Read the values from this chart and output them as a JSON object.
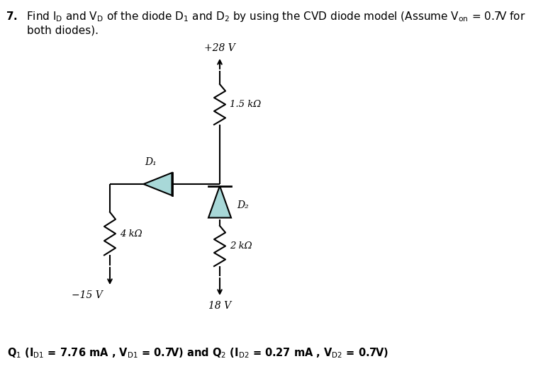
{
  "bg_color": "#ffffff",
  "wire_color": "#000000",
  "diode_fill": "#a8d8d8",
  "diode_stroke": "#000000",
  "text_color": "#000000",
  "voltage_top": "+28 V",
  "voltage_bottom": "18 V",
  "voltage_left": "−15 V",
  "r1_label": "1.5 kΩ",
  "r2_label": "4 kΩ",
  "r3_label": "2 kΩ",
  "d1_label": "D₁",
  "d2_label": "D₂",
  "header1": "7.  Find I",
  "header_sub_D": "D",
  "header2": " and V",
  "header3": " of the diode D",
  "header4": " and D",
  "header5": " by using the CVD diode model (Assume V",
  "header6": " = 0.7V for",
  "header7": "both diodes).",
  "ans_Q1": "Q",
  "ans_text": " (I",
  "ans_D1": "D1",
  "ans_eq1": " = 7.76 mA , V",
  "ans_D1b": "D1",
  "ans_eq2": " = 0.7V) and Q",
  "ans_Q2": "2",
  "ans_text2": " (I",
  "ans_D2": "D2",
  "ans_eq3": " = 0.27 mA , V",
  "ans_D2b": "D2",
  "ans_eq4": " = 0.7V)",
  "figsize": [
    7.73,
    5.24
  ],
  "dpi": 100
}
